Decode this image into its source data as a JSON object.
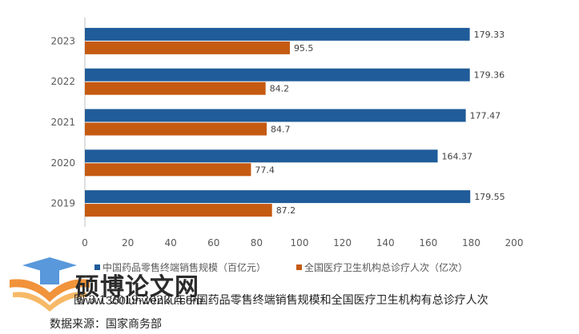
{
  "chart_data": {
    "type": "bar",
    "orientation": "horizontal",
    "categories": [
      "2023",
      "2022",
      "2021",
      "2020",
      "2019"
    ],
    "series": [
      {
        "name": "中国药品零售终端销售规模（百亿元）",
        "color": "#1f5c99",
        "values": [
          179.33,
          179.36,
          177.47,
          164.37,
          179.55
        ],
        "labels": [
          "179.33",
          "179.36",
          "177.47",
          "164.37",
          "179.55"
        ]
      },
      {
        "name": "全国医疗卫生机构总诊疗人次（亿次）",
        "color": "#c55a11",
        "values": [
          95.5,
          84.2,
          84.7,
          77.4,
          87.2
        ],
        "labels": [
          "95.5",
          "84.2",
          "84.7",
          "77.4",
          "87.2"
        ]
      }
    ],
    "xlim": [
      0,
      200
    ],
    "xticks": [
      "0",
      "20",
      "40",
      "60",
      "80",
      "100",
      "120",
      "140",
      "160",
      "180",
      "200"
    ],
    "legend_position": "bottom",
    "grid": false
  },
  "caption": "图 3.1 2019-2023 年中国药品零售终端销售规模和全国医疗卫生机构有总诊疗人次",
  "source": "数据来源：国家商务部",
  "watermark": {
    "name": "硕博论文网",
    "url": "www.360lunwenku.com"
  }
}
